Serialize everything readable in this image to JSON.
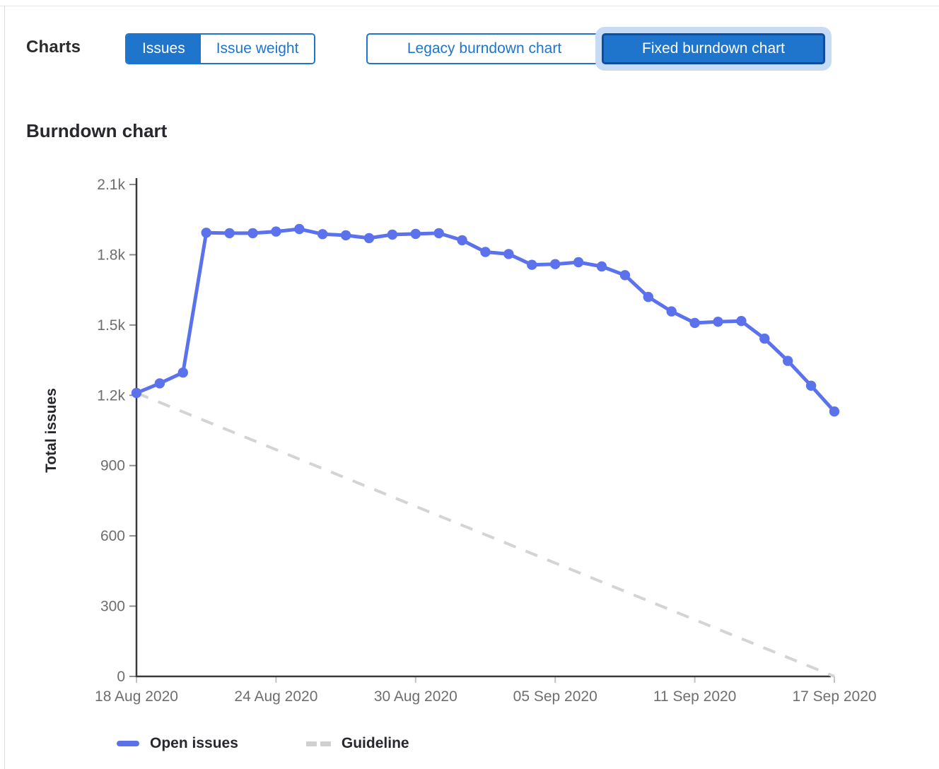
{
  "header": {
    "charts_label": "Charts",
    "chart_type_toggle": {
      "options": [
        {
          "label": "Issues",
          "selected": true
        },
        {
          "label": "Issue weight",
          "selected": false
        }
      ]
    },
    "burndown_toggle": {
      "options": [
        {
          "label": "Legacy burndown chart",
          "selected": false
        },
        {
          "label": "Fixed burndown chart",
          "selected": true
        }
      ]
    }
  },
  "section_title": "Burndown chart",
  "colors": {
    "accent_blue": "#1f75cb",
    "selected_button_border": "#0d4ea2",
    "focus_ring": "#c7dbf5",
    "series_blue": "#5b72ec",
    "guideline_gray": "#d4d4d4",
    "axis": "#3a3a3e",
    "tick_label": "#6e6e6e",
    "text_dark": "#28272d"
  },
  "chart_data": {
    "type": "line",
    "title": "Burndown chart",
    "xlabel": "",
    "ylabel": "Total issues",
    "ylim": [
      0,
      2100
    ],
    "grid": false,
    "legend_position": "bottom",
    "y_ticks": [
      {
        "value": 0,
        "label": "0"
      },
      {
        "value": 300,
        "label": "300"
      },
      {
        "value": 600,
        "label": "600"
      },
      {
        "value": 900,
        "label": "900"
      },
      {
        "value": 1200,
        "label": "1.2k"
      },
      {
        "value": 1500,
        "label": "1.5k"
      },
      {
        "value": 1800,
        "label": "1.8k"
      },
      {
        "value": 2100,
        "label": "2.1k"
      }
    ],
    "x_axis_ticks": [
      "18 Aug 2020",
      "24 Aug 2020",
      "30 Aug 2020",
      "05 Sep 2020",
      "11 Sep 2020",
      "17 Sep 2020"
    ],
    "x": [
      "18 Aug 2020",
      "19 Aug 2020",
      "20 Aug 2020",
      "21 Aug 2020",
      "22 Aug 2020",
      "23 Aug 2020",
      "24 Aug 2020",
      "25 Aug 2020",
      "26 Aug 2020",
      "27 Aug 2020",
      "28 Aug 2020",
      "29 Aug 2020",
      "30 Aug 2020",
      "31 Aug 2020",
      "01 Sep 2020",
      "02 Sep 2020",
      "03 Sep 2020",
      "04 Sep 2020",
      "05 Sep 2020",
      "06 Sep 2020",
      "07 Sep 2020",
      "08 Sep 2020",
      "09 Sep 2020",
      "10 Sep 2020",
      "11 Sep 2020",
      "12 Sep 2020",
      "13 Sep 2020",
      "14 Sep 2020",
      "15 Sep 2020",
      "16 Sep 2020",
      "17 Sep 2020"
    ],
    "series": [
      {
        "name": "Open issues",
        "style": "solid",
        "markers": true,
        "color": "#5b72ec",
        "values": [
          1210,
          1251,
          1297,
          1894,
          1892,
          1892,
          1899,
          1910,
          1888,
          1883,
          1871,
          1886,
          1889,
          1892,
          1862,
          1812,
          1803,
          1757,
          1760,
          1768,
          1750,
          1713,
          1620,
          1558,
          1509,
          1514,
          1517,
          1442,
          1347,
          1241,
          1131
        ]
      },
      {
        "name": "Guideline",
        "style": "dashed",
        "markers": false,
        "color": "#d4d4d4",
        "endpoints": [
          1210,
          0
        ]
      }
    ]
  }
}
